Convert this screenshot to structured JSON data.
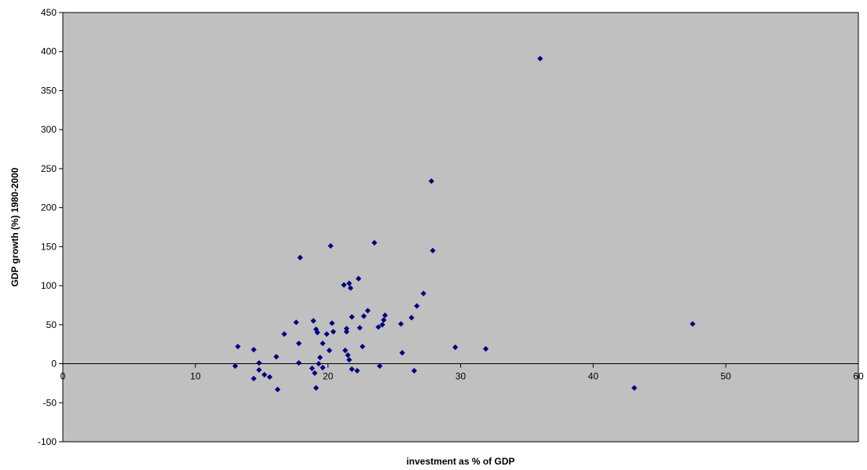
{
  "chart_data": {
    "type": "scatter",
    "title": "",
    "xlabel": "investment as % of GDP",
    "ylabel": "GDP growth (%) 1980-2000",
    "xlim": [
      0,
      60
    ],
    "ylim": [
      -100,
      450
    ],
    "x_ticks": [
      0,
      10,
      20,
      30,
      40,
      50,
      60
    ],
    "y_ticks": [
      -100,
      -50,
      0,
      50,
      100,
      150,
      200,
      250,
      300,
      350,
      400,
      450
    ],
    "grid": false,
    "legend": "none",
    "colors": {
      "plot_background": "#c0c0c0",
      "point": "#000080",
      "axis": "#000000"
    },
    "series": [
      {
        "points": [
          [
            13.0,
            -3
          ],
          [
            13.2,
            22
          ],
          [
            14.4,
            18
          ],
          [
            14.4,
            -19
          ],
          [
            14.8,
            1
          ],
          [
            14.8,
            -8
          ],
          [
            15.2,
            -14
          ],
          [
            15.6,
            -17
          ],
          [
            16.1,
            9
          ],
          [
            16.2,
            -33
          ],
          [
            16.7,
            38
          ],
          [
            17.6,
            53
          ],
          [
            17.8,
            26
          ],
          [
            17.8,
            1
          ],
          [
            17.9,
            136
          ],
          [
            18.8,
            -6
          ],
          [
            18.9,
            55
          ],
          [
            19.0,
            -12
          ],
          [
            19.1,
            -31
          ],
          [
            19.1,
            44
          ],
          [
            19.2,
            40
          ],
          [
            19.3,
            0
          ],
          [
            19.4,
            8
          ],
          [
            19.6,
            -5
          ],
          [
            19.6,
            26
          ],
          [
            19.9,
            38
          ],
          [
            20.1,
            17
          ],
          [
            20.2,
            151
          ],
          [
            20.3,
            52
          ],
          [
            20.4,
            41
          ],
          [
            21.2,
            101
          ],
          [
            21.3,
            17
          ],
          [
            21.4,
            45
          ],
          [
            21.4,
            41
          ],
          [
            21.5,
            11
          ],
          [
            21.6,
            103
          ],
          [
            21.6,
            5
          ],
          [
            21.7,
            97
          ],
          [
            21.8,
            -7
          ],
          [
            21.8,
            60
          ],
          [
            22.2,
            -9
          ],
          [
            22.3,
            109
          ],
          [
            22.4,
            46
          ],
          [
            22.6,
            22
          ],
          [
            22.7,
            61
          ],
          [
            23.0,
            68
          ],
          [
            23.5,
            155
          ],
          [
            23.8,
            47
          ],
          [
            23.9,
            -3
          ],
          [
            24.1,
            50
          ],
          [
            24.2,
            56
          ],
          [
            24.3,
            62
          ],
          [
            25.5,
            51
          ],
          [
            25.6,
            14
          ],
          [
            26.3,
            59
          ],
          [
            26.5,
            -9
          ],
          [
            26.7,
            74
          ],
          [
            27.2,
            90
          ],
          [
            27.8,
            234
          ],
          [
            27.9,
            145
          ],
          [
            29.6,
            21
          ],
          [
            31.9,
            19
          ],
          [
            36.0,
            391
          ],
          [
            43.1,
            -31
          ],
          [
            47.5,
            51
          ]
        ]
      }
    ]
  }
}
